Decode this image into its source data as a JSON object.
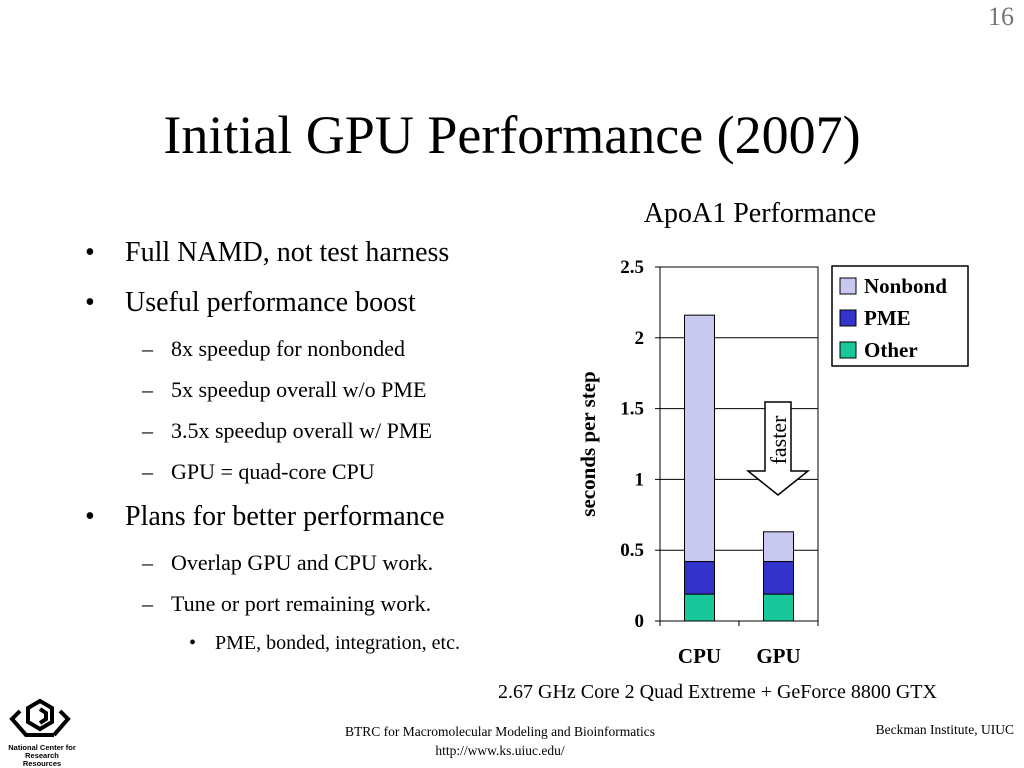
{
  "slide": {
    "number": "16",
    "title": "Initial GPU Performance (2007)"
  },
  "bullets": [
    {
      "level": 1,
      "mark": "•",
      "text": "Full NAMD, not test harness"
    },
    {
      "level": 1,
      "mark": "•",
      "text": "Useful performance boost"
    },
    {
      "level": 2,
      "mark": "–",
      "text": "8x speedup for nonbonded"
    },
    {
      "level": 2,
      "mark": "–",
      "text": "5x speedup overall w/o PME"
    },
    {
      "level": 2,
      "mark": "–",
      "text": "3.5x speedup overall w/ PME"
    },
    {
      "level": 2,
      "mark": "–",
      "text": "GPU = quad-core CPU"
    },
    {
      "level": 1,
      "mark": "•",
      "text": "Plans for better performance"
    },
    {
      "level": 2,
      "mark": "–",
      "text": "Overlap GPU and CPU work."
    },
    {
      "level": 2,
      "mark": "–",
      "text": "Tune or port remaining work."
    },
    {
      "level": 3,
      "mark": "•",
      "text": "PME, bonded, integration, etc."
    }
  ],
  "chart_data": {
    "type": "bar",
    "stacked": true,
    "title": "ApoA1 Performance",
    "ylabel": "seconds per step",
    "xlabel": "",
    "categories": [
      "CPU",
      "GPU"
    ],
    "series": [
      {
        "name": "Other",
        "color": "#18c89a",
        "values": [
          0.19,
          0.19
        ]
      },
      {
        "name": "PME",
        "color": "#3333cc",
        "values": [
          0.23,
          0.23
        ]
      },
      {
        "name": "Nonbond",
        "color": "#c8c8f0",
        "values": [
          1.74,
          0.21
        ]
      }
    ],
    "legend_order": [
      "Nonbond",
      "PME",
      "Other"
    ],
    "ylim": [
      0,
      2.5
    ],
    "yticks": [
      "0",
      "0.5",
      "1",
      "1.5",
      "2",
      "2.5"
    ],
    "grid": true,
    "legend_position": "top-right",
    "annotation": "faster"
  },
  "caption": "2.67 GHz Core 2 Quad Extreme + GeForce 8800 GTX",
  "logo_text": "National Center for Research Resources",
  "footer": {
    "center_line1": "BTRC for Macromolecular Modeling and Bioinformatics",
    "center_line2": "http://www.ks.uiuc.edu/",
    "right": "Beckman Institute, UIUC"
  }
}
